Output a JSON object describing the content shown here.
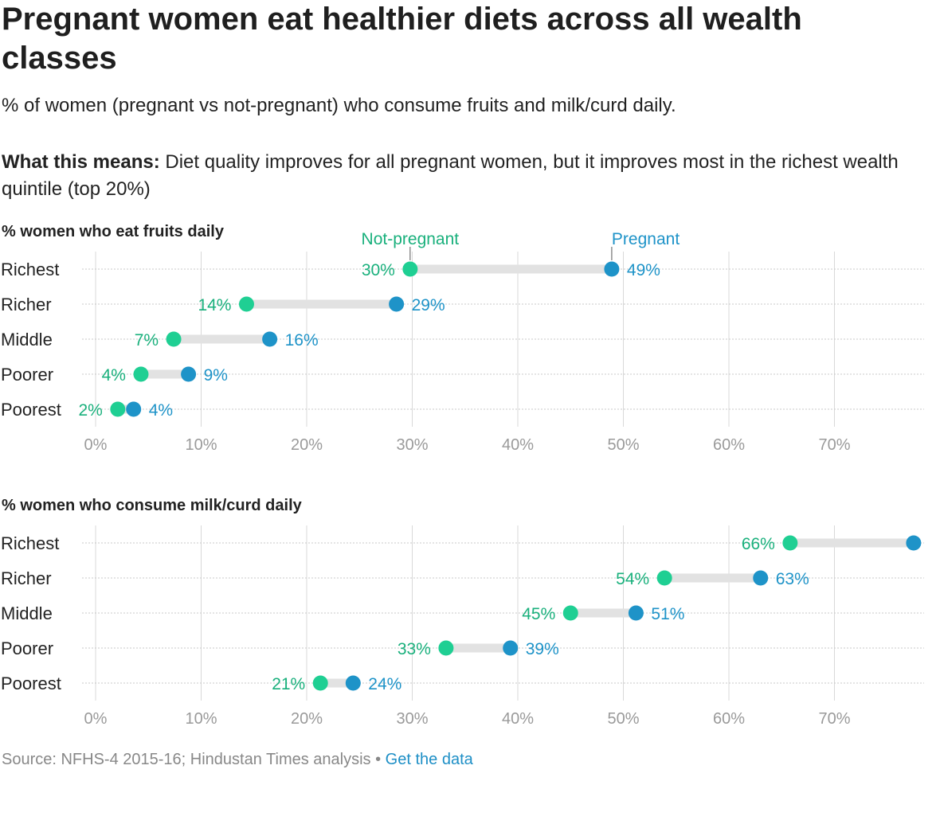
{
  "title": "Pregnant women eat healthier diets across all wealth classes",
  "subtitle": "% of women (pregnant vs not-pregnant) who consume fruits and milk/curd daily.",
  "means_label": "What this means:",
  "means_text": " Diet quality improves for all pregnant women, but it improves most in the richest wealth quintile (top 20%)",
  "source_text": "Source: NFHS-4 2015-16; Hindustan Times analysis",
  "source_sep": " • ",
  "source_link": "Get the data",
  "colors": {
    "not_pregnant": "#1fcf93",
    "pregnant": "#1e93c8",
    "connector": "#e2e2e2",
    "grid": "#d8d8d8",
    "tick": "#9a9a9a"
  },
  "chart_data": [
    {
      "type": "dumbbell",
      "title": "% women who eat fruits daily",
      "categories": [
        "Richest",
        "Richer",
        "Middle",
        "Poorer",
        "Poorest"
      ],
      "series": [
        {
          "name": "Not-pregnant",
          "values": [
            29.8,
            14.3,
            7.4,
            4.3,
            2.1
          ],
          "labels": [
            "30%",
            "14%",
            "7%",
            "4%",
            "2%"
          ]
        },
        {
          "name": "Pregnant",
          "values": [
            48.9,
            28.5,
            16.5,
            8.8,
            3.6
          ],
          "labels": [
            "49%",
            "29%",
            "16%",
            "9%",
            "4%"
          ]
        }
      ],
      "xlim": [
        0,
        78
      ],
      "xticks": [
        0,
        10,
        20,
        30,
        40,
        50,
        60,
        70
      ],
      "xtick_labels": [
        "0%",
        "10%",
        "20%",
        "30%",
        "40%",
        "50%",
        "60%",
        "70%"
      ],
      "legend": "annotations above top row"
    },
    {
      "type": "dumbbell",
      "title": "% women who consume milk/curd daily",
      "categories": [
        "Richest",
        "Richer",
        "Middle",
        "Poorer",
        "Poorest"
      ],
      "series": [
        {
          "name": "Not-pregnant",
          "values": [
            65.8,
            53.9,
            45.0,
            33.2,
            21.3
          ],
          "labels": [
            "66%",
            "54%",
            "45%",
            "33%",
            "21%"
          ]
        },
        {
          "name": "Pregnant",
          "values": [
            77.5,
            63.0,
            51.2,
            39.3,
            24.4
          ],
          "labels": [
            "",
            "63%",
            "51%",
            "39%",
            "24%"
          ]
        }
      ],
      "xlim": [
        0,
        78
      ],
      "xticks": [
        0,
        10,
        20,
        30,
        40,
        50,
        60,
        70
      ],
      "xtick_labels": [
        "0%",
        "10%",
        "20%",
        "30%",
        "40%",
        "50%",
        "60%",
        "70%"
      ]
    }
  ]
}
